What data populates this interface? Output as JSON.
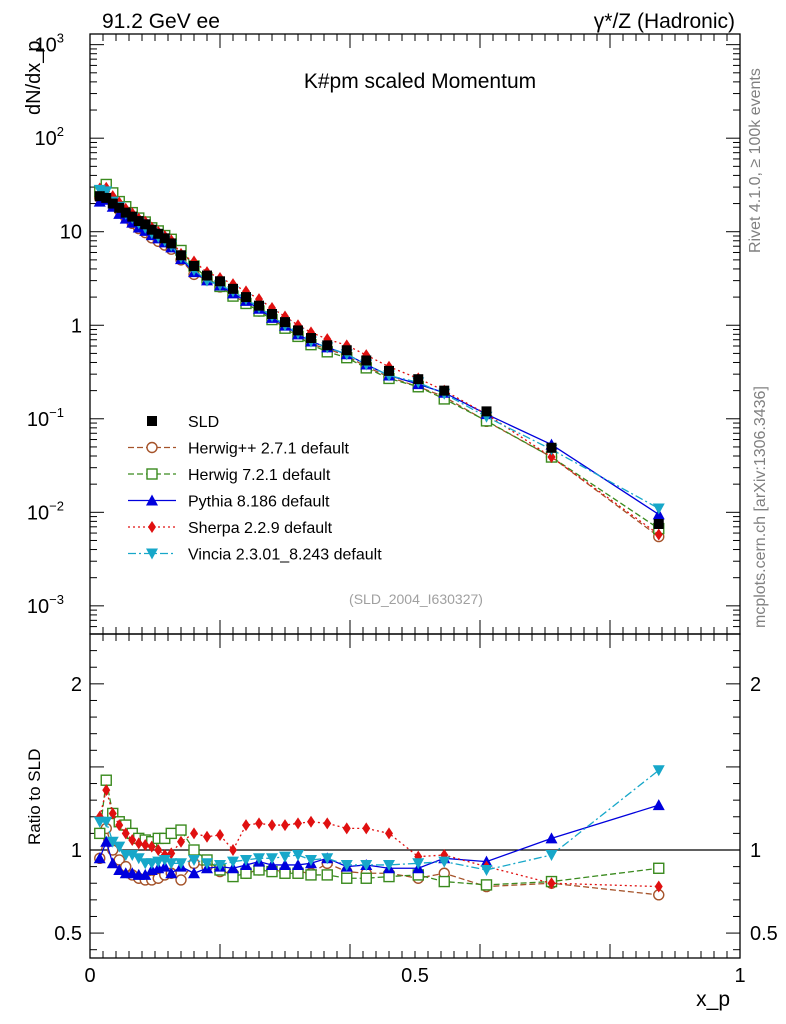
{
  "header": {
    "left": "91.2 GeV ee",
    "right": "γ*/Z (Hadronic)",
    "title": "K#pm scaled Momentum",
    "ref": "(SLD_2004_I630327)",
    "side_top": "Rivet 4.1.0, ≥ 100k events",
    "side_bottom": "mcplots.cern.ch [arXiv:1306.3436]"
  },
  "axes": {
    "ylabel_top": "dN/dx_p",
    "ylabel_bottom": "Ratio to SLD",
    "xlabel": "x_p"
  },
  "colors": {
    "SLD": "#000000",
    "Herwig++": "#a5532a",
    "Herwig7": "#3a8a1e",
    "Pythia": "#0000dd",
    "Sherpa": "#e01010",
    "Vincia": "#17a7c9"
  },
  "chart_data": [
    {
      "type": "line",
      "name": "distribution",
      "title": "K#pm scaled Momentum",
      "xlabel": "x_p",
      "ylabel": "dN/dx_p",
      "yscale": "log",
      "xlim": [
        0,
        1
      ],
      "ylim": [
        0.0005,
        1300
      ],
      "x_ticks": [
        "0",
        "0.5",
        "1"
      ],
      "y_ticks": [
        "10^-3",
        "10^-2",
        "10^-1",
        "1",
        "10",
        "10^2",
        "10^3"
      ],
      "x": [
        0.015,
        0.025,
        0.035,
        0.045,
        0.055,
        0.065,
        0.075,
        0.085,
        0.095,
        0.105,
        0.115,
        0.125,
        0.14,
        0.16,
        0.18,
        0.2,
        0.22,
        0.24,
        0.26,
        0.28,
        0.3,
        0.32,
        0.34,
        0.365,
        0.395,
        0.425,
        0.46,
        0.505,
        0.545,
        0.61,
        0.71,
        0.875
      ],
      "series": [
        {
          "name": "SLD",
          "color": "#000000",
          "marker": "square",
          "values": [
            24,
            23,
            20,
            18,
            16,
            14.5,
            13,
            12,
            10.5,
            9.5,
            8.5,
            7.5,
            5.6,
            4.3,
            3.4,
            2.95,
            2.45,
            2.0,
            1.62,
            1.32,
            1.08,
            0.88,
            0.73,
            0.61,
            0.54,
            0.42,
            0.325,
            0.265,
            0.2,
            0.12,
            0.049,
            0.0075
          ]
        },
        {
          "name": "Herwig++ 2.7.1 default",
          "color": "#a5532a",
          "dash": "6,3",
          "marker": "circle-open",
          "values": [
            23,
            26,
            22,
            17,
            14.3,
            12.3,
            10.8,
            9.8,
            8.6,
            7.9,
            7.2,
            6.5,
            5.0,
            3.5,
            3.06,
            2.57,
            2.1,
            1.72,
            1.42,
            1.16,
            0.94,
            0.77,
            0.63,
            0.56,
            0.47,
            0.36,
            0.28,
            0.22,
            0.172,
            0.094,
            0.039,
            0.0055
          ]
        },
        {
          "name": "Herwig 7.2.1 default",
          "color": "#3a8a1e",
          "dash": "6,3",
          "marker": "square-open",
          "values": [
            27,
            32,
            26,
            21,
            18.5,
            16,
            14,
            12.7,
            11,
            10.2,
            9.1,
            8.3,
            6.3,
            4.3,
            3.2,
            2.6,
            2.05,
            1.71,
            1.42,
            1.15,
            0.93,
            0.76,
            0.62,
            0.52,
            0.45,
            0.35,
            0.27,
            0.22,
            0.163,
            0.095,
            0.039,
            0.0067
          ]
        },
        {
          "name": "Pythia 8.186 default",
          "color": "#0000dd",
          "dash": "",
          "marker": "triangle-up",
          "values": [
            21,
            22,
            18.5,
            15.5,
            13.8,
            12.5,
            11.1,
            10.2,
            9.2,
            8.5,
            7.7,
            6.8,
            5.1,
            3.7,
            3.02,
            2.66,
            2.19,
            1.82,
            1.5,
            1.2,
            0.99,
            0.8,
            0.67,
            0.58,
            0.49,
            0.38,
            0.29,
            0.235,
            0.19,
            0.112,
            0.053,
            0.0095
          ]
        },
        {
          "name": "Sherpa 2.2.9 default",
          "color": "#e01010",
          "dash": "2,3",
          "marker": "diamond",
          "values": [
            29,
            29.5,
            24,
            20.5,
            17.6,
            15.8,
            13.8,
            12.8,
            11.1,
            10,
            9,
            8.1,
            5.8,
            4.8,
            3.7,
            3.2,
            2.75,
            2.3,
            1.9,
            1.53,
            1.24,
            1.0,
            0.84,
            0.71,
            0.61,
            0.48,
            0.36,
            0.27,
            0.2,
            0.112,
            0.039,
            0.0058
          ]
        },
        {
          "name": "Vincia 2.3.01_8.243 default",
          "color": "#17a7c9",
          "dash": "8,3,2,3",
          "marker": "triangle-down",
          "values": [
            28,
            27,
            21,
            18.5,
            15.5,
            14,
            12.3,
            11,
            9.7,
            8.8,
            8,
            7.1,
            5.3,
            3.9,
            3.0,
            2.7,
            2.3,
            1.9,
            1.55,
            1.25,
            1.0,
            0.82,
            0.67,
            0.58,
            0.49,
            0.38,
            0.29,
            0.245,
            0.185,
            0.105,
            0.047,
            0.011
          ]
        }
      ]
    },
    {
      "type": "line",
      "name": "ratio",
      "ylabel": "Ratio to SLD",
      "xlabel": "x_p",
      "xlim": [
        0,
        1
      ],
      "ylim": [
        0.35,
        2.3
      ],
      "y_ticks": [
        "0.5",
        "1",
        "2"
      ],
      "reference": 1,
      "x": [
        0.015,
        0.025,
        0.035,
        0.045,
        0.055,
        0.065,
        0.075,
        0.085,
        0.095,
        0.105,
        0.115,
        0.125,
        0.14,
        0.16,
        0.18,
        0.2,
        0.22,
        0.24,
        0.26,
        0.28,
        0.3,
        0.32,
        0.34,
        0.365,
        0.395,
        0.425,
        0.46,
        0.505,
        0.545,
        0.61,
        0.71,
        0.875
      ],
      "series": [
        {
          "name": "Herwig++ 2.7.1 default",
          "color": "#a5532a",
          "dash": "6,3",
          "marker": "circle-open",
          "values": [
            0.95,
            1.13,
            1.0,
            0.94,
            0.9,
            0.85,
            0.83,
            0.82,
            0.82,
            0.83,
            0.85,
            0.86,
            0.82,
            0.92,
            0.9,
            0.87,
            0.86,
            0.86,
            0.88,
            0.88,
            0.87,
            0.87,
            0.86,
            0.92,
            0.87,
            0.86,
            0.86,
            0.83,
            0.86,
            0.78,
            0.8,
            0.73
          ]
        },
        {
          "name": "Herwig 7.2.1 default",
          "color": "#3a8a1e",
          "dash": "6,3",
          "marker": "square-open",
          "values": [
            1.1,
            1.42,
            1.22,
            1.17,
            1.15,
            1.1,
            1.07,
            1.06,
            1.05,
            1.07,
            1.07,
            1.1,
            1.12,
            1.0,
            0.94,
            0.88,
            0.84,
            0.86,
            0.88,
            0.87,
            0.86,
            0.86,
            0.85,
            0.85,
            0.83,
            0.83,
            0.84,
            0.85,
            0.81,
            0.79,
            0.81,
            0.89
          ]
        },
        {
          "name": "Pythia 8.186 default",
          "color": "#0000dd",
          "dash": "",
          "marker": "triangle-up",
          "values": [
            0.95,
            1.05,
            0.92,
            0.88,
            0.86,
            0.86,
            0.85,
            0.85,
            0.88,
            0.89,
            0.9,
            0.86,
            0.9,
            0.86,
            0.89,
            0.9,
            0.89,
            0.91,
            0.93,
            0.91,
            0.91,
            0.91,
            0.92,
            0.95,
            0.9,
            0.91,
            0.89,
            0.89,
            0.95,
            0.93,
            1.07,
            1.27
          ]
        },
        {
          "name": "Sherpa 2.2.9 default",
          "color": "#e01010",
          "dash": "2,3",
          "marker": "diamond",
          "values": [
            1.2,
            1.36,
            1.22,
            1.15,
            1.1,
            1.06,
            1.04,
            1.03,
            1.02,
            1.0,
            0.97,
            0.98,
            1.05,
            1.1,
            1.08,
            1.09,
            1.0,
            1.15,
            1.16,
            1.15,
            1.15,
            1.16,
            1.17,
            1.16,
            1.13,
            1.13,
            1.1,
            0.96,
            0.97,
            0.9,
            0.8,
            0.78
          ]
        },
        {
          "name": "Vincia 2.3.01_8.243 default",
          "color": "#17a7c9",
          "dash": "8,3,2,3",
          "marker": "triangle-down",
          "values": [
            1.17,
            1.17,
            1.05,
            1.02,
            0.97,
            0.97,
            0.95,
            0.92,
            0.92,
            0.93,
            0.94,
            0.92,
            0.92,
            0.94,
            0.92,
            0.91,
            0.93,
            0.94,
            0.95,
            0.95,
            0.96,
            0.97,
            0.94,
            0.95,
            0.91,
            0.91,
            0.91,
            0.92,
            0.93,
            0.88,
            0.97,
            1.48
          ]
        }
      ]
    }
  ]
}
